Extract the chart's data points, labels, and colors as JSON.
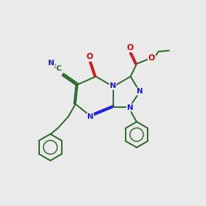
{
  "bg_color": "#eaeaea",
  "bc": "#2a6a2a",
  "nc": "#1a1aee",
  "oc": "#cc1111",
  "lw": 1.5,
  "fs": 7.5,
  "xlim": [
    0,
    10
  ],
  "ylim": [
    0,
    10
  ]
}
